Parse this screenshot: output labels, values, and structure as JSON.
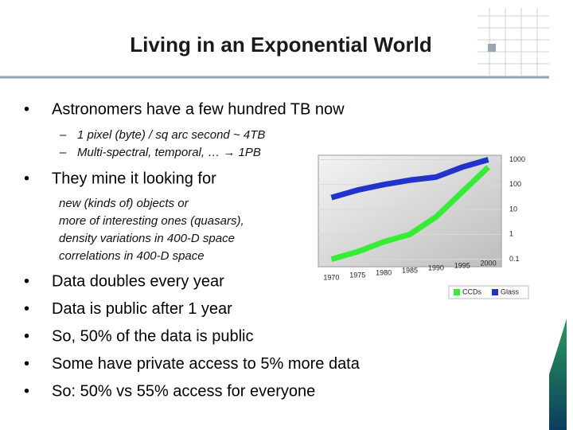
{
  "slide": {
    "title": "Living in an Exponential World",
    "bullets_top": [
      "Astronomers have a few hundred TB now"
    ],
    "sub_bullets": [
      "1 pixel (byte) / sq arc second ~ 4TB",
      "Multi-spectral, temporal, … → 1PB"
    ],
    "bullet_mine": "They mine it looking for",
    "mine_items": [
      "new (kinds of) objects or",
      "more of interesting ones (quasars),",
      "density variations in 400-D space",
      "correlations in 400-D space"
    ],
    "bullets_bottom": [
      "Data doubles every year",
      "Data is public after 1 year",
      "So, 50% of the data is public",
      "Some have private access to 5% more data",
      "So: 50% vs 55% access for everyone"
    ]
  },
  "chart_data": {
    "type": "line",
    "categories": [
      "1970",
      "1975",
      "1980",
      "1985",
      "1990",
      "1995",
      "2000"
    ],
    "series": [
      {
        "name": "CCDs",
        "color": "#33ee33",
        "values": [
          0.1,
          0.2,
          0.5,
          1,
          5,
          50,
          500
        ]
      },
      {
        "name": "Glass",
        "color": "#2233cc",
        "values": [
          30,
          60,
          100,
          150,
          200,
          500,
          1000
        ]
      }
    ],
    "log_scale": true,
    "ylim": [
      0.05,
      1500
    ],
    "yticks": [
      0.1,
      1,
      10,
      100,
      1000
    ],
    "grid": true,
    "legend": "bottom-right"
  }
}
